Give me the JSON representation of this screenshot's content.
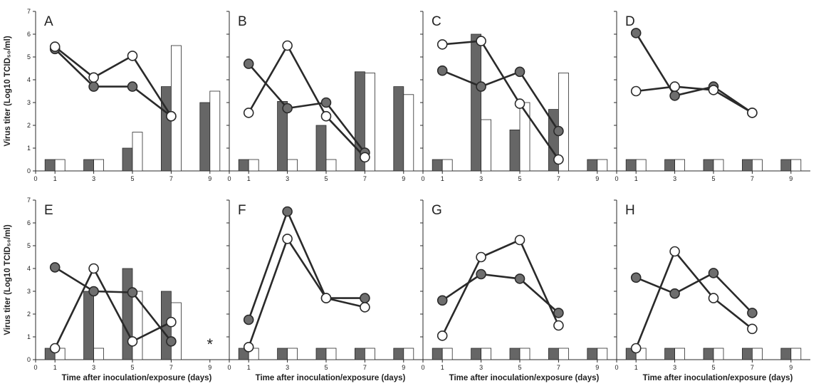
{
  "figure": {
    "ylabel_top": "Virus titer (Log10 TCID₅₀/ml)",
    "ylabel_bottom": "Virus titer (Log10 TCID₅₀/ml)",
    "xlabel": "Time after inoculation/exposure (days)"
  },
  "chart_data": [
    {
      "type": "bar",
      "panel": "A",
      "x_ticks": [
        "0",
        "1",
        "3",
        "5",
        "7",
        "9"
      ],
      "y_ticks": [
        "0",
        "1",
        "2",
        "3",
        "4",
        "5",
        "6",
        "7"
      ],
      "xlim": [
        0,
        10
      ],
      "ylim": [
        0,
        7
      ],
      "grid": false,
      "bars_gray": [
        [
          1,
          0.5
        ],
        [
          3,
          0.5
        ],
        [
          5,
          1.0
        ],
        [
          7,
          3.7
        ],
        [
          9,
          3.0
        ]
      ],
      "bars_white": [
        [
          1,
          0.5
        ],
        [
          3,
          0.5
        ],
        [
          5,
          1.7
        ],
        [
          7,
          5.5
        ],
        [
          9,
          3.5
        ]
      ],
      "line_gray": [
        [
          1,
          5.35
        ],
        [
          3,
          3.7
        ],
        [
          5,
          3.7
        ],
        [
          7,
          2.4
        ]
      ],
      "line_white": [
        [
          1,
          5.45
        ],
        [
          3,
          4.1
        ],
        [
          5,
          5.05
        ],
        [
          7,
          2.4
        ]
      ],
      "annotation": ""
    },
    {
      "type": "bar",
      "panel": "B",
      "x_ticks": [
        "0",
        "1",
        "3",
        "5",
        "7",
        "9"
      ],
      "y_ticks": [
        "0",
        "1",
        "2",
        "3",
        "4",
        "5",
        "6",
        "7"
      ],
      "xlim": [
        0,
        10
      ],
      "ylim": [
        0,
        7
      ],
      "grid": false,
      "bars_gray": [
        [
          1,
          0.5
        ],
        [
          3,
          3.05
        ],
        [
          5,
          2.0
        ],
        [
          7,
          4.35
        ],
        [
          9,
          3.7
        ]
      ],
      "bars_white": [
        [
          1,
          0.5
        ],
        [
          3,
          0.5
        ],
        [
          5,
          0.5
        ],
        [
          7,
          4.3
        ],
        [
          9,
          3.35
        ]
      ],
      "line_gray": [
        [
          1,
          4.7
        ],
        [
          3,
          2.75
        ],
        [
          5,
          3.0
        ],
        [
          7,
          0.8
        ]
      ],
      "line_white": [
        [
          1,
          2.55
        ],
        [
          3,
          5.5
        ],
        [
          5,
          2.4
        ],
        [
          7,
          0.6
        ]
      ],
      "annotation": ""
    },
    {
      "type": "bar",
      "panel": "C",
      "x_ticks": [
        "0",
        "1",
        "3",
        "5",
        "7",
        "9"
      ],
      "y_ticks": [
        "0",
        "1",
        "2",
        "3",
        "4",
        "5",
        "6",
        "7"
      ],
      "xlim": [
        0,
        10
      ],
      "ylim": [
        0,
        7
      ],
      "grid": false,
      "bars_gray": [
        [
          1,
          0.5
        ],
        [
          3,
          6.0
        ],
        [
          5,
          1.8
        ],
        [
          7,
          2.7
        ],
        [
          9,
          0.5
        ]
      ],
      "bars_white": [
        [
          1,
          0.5
        ],
        [
          3,
          2.25
        ],
        [
          5,
          3.0
        ],
        [
          7,
          4.3
        ],
        [
          9,
          0.5
        ]
      ],
      "line_gray": [
        [
          1,
          4.4
        ],
        [
          3,
          3.7
        ],
        [
          5,
          4.35
        ],
        [
          7,
          1.75
        ]
      ],
      "line_white": [
        [
          1,
          5.55
        ],
        [
          3,
          5.7
        ],
        [
          5,
          2.95
        ],
        [
          7,
          0.5
        ]
      ],
      "annotation": ""
    },
    {
      "type": "bar",
      "panel": "D",
      "x_ticks": [
        "0",
        "1",
        "3",
        "5",
        "7",
        "9"
      ],
      "y_ticks": [
        "0",
        "1",
        "2",
        "3",
        "4",
        "5",
        "6",
        "7"
      ],
      "xlim": [
        0,
        10
      ],
      "ylim": [
        0,
        7
      ],
      "grid": false,
      "bars_gray": [
        [
          1,
          0.5
        ],
        [
          3,
          0.5
        ],
        [
          5,
          0.5
        ],
        [
          7,
          0.5
        ],
        [
          9,
          0.5
        ]
      ],
      "bars_white": [
        [
          1,
          0.5
        ],
        [
          3,
          0.5
        ],
        [
          5,
          0.5
        ],
        [
          7,
          0.5
        ],
        [
          9,
          0.5
        ]
      ],
      "line_gray": [
        [
          1,
          6.05
        ],
        [
          3,
          3.3
        ],
        [
          5,
          3.7
        ],
        [
          7,
          2.55
        ]
      ],
      "line_white": [
        [
          1,
          3.5
        ],
        [
          3,
          3.7
        ],
        [
          5,
          3.55
        ],
        [
          7,
          2.55
        ]
      ],
      "annotation": ""
    },
    {
      "type": "bar",
      "panel": "E",
      "x_ticks": [
        "0",
        "1",
        "3",
        "5",
        "7",
        "9"
      ],
      "y_ticks": [
        "0",
        "1",
        "2",
        "3",
        "4",
        "5",
        "6",
        "7"
      ],
      "xlim": [
        0,
        10
      ],
      "ylim": [
        0,
        7
      ],
      "grid": false,
      "bars_gray": [
        [
          1,
          0.5
        ],
        [
          3,
          3.0
        ],
        [
          5,
          4.0
        ],
        [
          7,
          3.0
        ]
      ],
      "bars_white": [
        [
          1,
          0.5
        ],
        [
          3,
          0.5
        ],
        [
          5,
          3.0
        ],
        [
          7,
          2.5
        ]
      ],
      "line_gray": [
        [
          1,
          4.05
        ],
        [
          3,
          3.0
        ],
        [
          5,
          2.95
        ],
        [
          7,
          0.8
        ]
      ],
      "line_white": [
        [
          1,
          0.5
        ],
        [
          3,
          4.0
        ],
        [
          5,
          0.8
        ],
        [
          7,
          1.65
        ]
      ],
      "annotation": "*"
    },
    {
      "type": "bar",
      "panel": "F",
      "x_ticks": [
        "0",
        "1",
        "3",
        "5",
        "7",
        "9"
      ],
      "y_ticks": [
        "0",
        "1",
        "2",
        "3",
        "4",
        "5",
        "6",
        "7"
      ],
      "xlim": [
        0,
        10
      ],
      "ylim": [
        0,
        7
      ],
      "grid": false,
      "bars_gray": [
        [
          1,
          0.5
        ],
        [
          3,
          0.5
        ],
        [
          5,
          0.5
        ],
        [
          7,
          0.5
        ],
        [
          9,
          0.5
        ]
      ],
      "bars_white": [
        [
          1,
          0.5
        ],
        [
          3,
          0.5
        ],
        [
          5,
          0.5
        ],
        [
          7,
          0.5
        ],
        [
          9,
          0.5
        ]
      ],
      "line_gray": [
        [
          1,
          1.75
        ],
        [
          3,
          6.5
        ],
        [
          5,
          2.7
        ],
        [
          7,
          2.7
        ]
      ],
      "line_white": [
        [
          1,
          0.55
        ],
        [
          3,
          5.3
        ],
        [
          5,
          2.7
        ],
        [
          7,
          2.3
        ]
      ],
      "annotation": ""
    },
    {
      "type": "bar",
      "panel": "G",
      "x_ticks": [
        "0",
        "1",
        "3",
        "5",
        "7",
        "9"
      ],
      "y_ticks": [
        "0",
        "1",
        "2",
        "3",
        "4",
        "5",
        "6",
        "7"
      ],
      "xlim": [
        0,
        10
      ],
      "ylim": [
        0,
        7
      ],
      "grid": false,
      "bars_gray": [
        [
          1,
          0.5
        ],
        [
          3,
          0.5
        ],
        [
          5,
          0.5
        ],
        [
          7,
          0.5
        ],
        [
          9,
          0.5
        ]
      ],
      "bars_white": [
        [
          1,
          0.5
        ],
        [
          3,
          0.5
        ],
        [
          5,
          0.5
        ],
        [
          7,
          0.5
        ],
        [
          9,
          0.5
        ]
      ],
      "line_gray": [
        [
          1,
          2.6
        ],
        [
          3,
          3.75
        ],
        [
          5,
          3.55
        ],
        [
          7,
          2.05
        ]
      ],
      "line_white": [
        [
          1,
          1.05
        ],
        [
          3,
          4.5
        ],
        [
          5,
          5.25
        ],
        [
          7,
          1.5
        ]
      ],
      "annotation": ""
    },
    {
      "type": "bar",
      "panel": "H",
      "x_ticks": [
        "0",
        "1",
        "3",
        "5",
        "7",
        "9"
      ],
      "y_ticks": [
        "0",
        "1",
        "2",
        "3",
        "4",
        "5",
        "6",
        "7"
      ],
      "xlim": [
        0,
        10
      ],
      "ylim": [
        0,
        7
      ],
      "grid": false,
      "bars_gray": [
        [
          1,
          0.5
        ],
        [
          3,
          0.5
        ],
        [
          5,
          0.5
        ],
        [
          7,
          0.5
        ],
        [
          9,
          0.5
        ]
      ],
      "bars_white": [
        [
          1,
          0.5
        ],
        [
          3,
          0.5
        ],
        [
          5,
          0.5
        ],
        [
          7,
          0.5
        ],
        [
          9,
          0.5
        ]
      ],
      "line_gray": [
        [
          1,
          3.6
        ],
        [
          3,
          2.9
        ],
        [
          5,
          3.8
        ],
        [
          7,
          2.05
        ]
      ],
      "line_white": [
        [
          1,
          0.5
        ],
        [
          3,
          4.75
        ],
        [
          5,
          2.7
        ],
        [
          7,
          1.35
        ]
      ],
      "annotation": ""
    }
  ],
  "colors": {
    "gray_fill": "#666666",
    "gray_marker": "#6e6e6e",
    "white_fill": "#ffffff",
    "stroke": "#2a2a2a",
    "text": "#222222"
  }
}
